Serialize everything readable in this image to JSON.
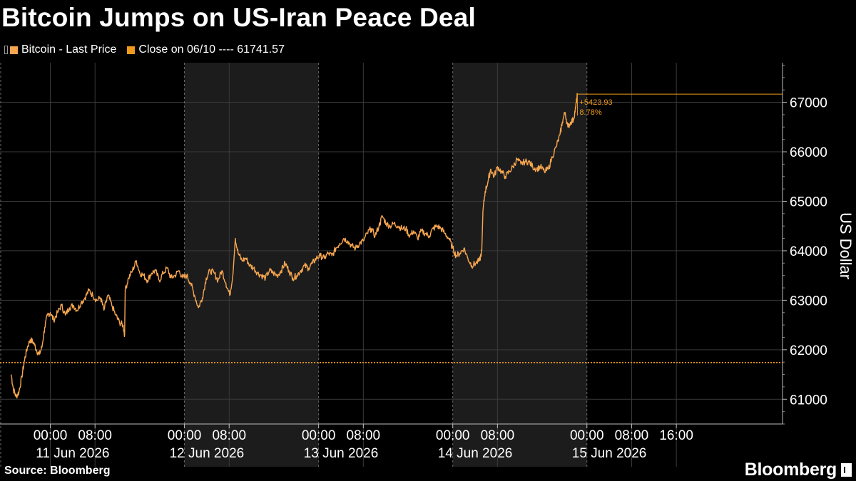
{
  "title": "Bitcoin Jumps on US-Iran Peace Deal",
  "legend": {
    "items": [
      {
        "label": "Bitcoin - Last Price",
        "color": "#f7a650"
      },
      {
        "label": "Close on 06/10 ---- 61741.57",
        "color": "#f09a1c"
      }
    ]
  },
  "source": "Source: Bloomberg",
  "logo": "Bloomberg",
  "colors": {
    "line": "#f7a650",
    "close": "#f09a1c",
    "shade": "#1c1c1c",
    "grid": "#3a3a3a"
  },
  "chart_data": {
    "type": "line",
    "ylabel": "US Dollar",
    "ylim": [
      60500,
      67800
    ],
    "yticks": [
      61000,
      62000,
      63000,
      64000,
      65000,
      66000,
      67000
    ],
    "x_unit": "hours since 00:00 11 Jun 2026",
    "xlim": [
      -9,
      131
    ],
    "shaded_days": [
      [
        24,
        48
      ],
      [
        72,
        96
      ]
    ],
    "day_boundaries": [
      24,
      48,
      72,
      96
    ],
    "xticks": [
      {
        "x": 0,
        "time": "00:00",
        "day": "11 Jun 2026"
      },
      {
        "x": 8,
        "time": "08:00",
        "day": ""
      },
      {
        "x": 24,
        "time": "00:00",
        "day": "12 Jun 2026"
      },
      {
        "x": 32,
        "time": "08:00",
        "day": ""
      },
      {
        "x": 48,
        "time": "00:00",
        "day": "13 Jun 2026"
      },
      {
        "x": 56,
        "time": "08:00",
        "day": ""
      },
      {
        "x": 72,
        "time": "00:00",
        "day": "14 Jun 2026"
      },
      {
        "x": 80,
        "time": "08:00",
        "day": ""
      },
      {
        "x": 96,
        "time": "00:00",
        "day": "15 Jun 2026"
      },
      {
        "x": 104,
        "time": "08:00",
        "day": ""
      },
      {
        "x": 112,
        "time": "16:00",
        "day": ""
      }
    ],
    "reference_line": {
      "label": "Close on 06/10",
      "value": 61741.57
    },
    "annotation": {
      "change": "+5423.93",
      "percent": "8.78%",
      "last": 67165.5
    },
    "series": [
      {
        "name": "Bitcoin - Last Price",
        "points": [
          [
            -7.0,
            61500
          ],
          [
            -6.6,
            61200
          ],
          [
            -6.1,
            61050
          ],
          [
            -5.6,
            61150
          ],
          [
            -5.1,
            61450
          ],
          [
            -4.6,
            61800
          ],
          [
            -4.1,
            62050
          ],
          [
            -3.6,
            62200
          ],
          [
            -3.0,
            62150
          ],
          [
            -2.5,
            62000
          ],
          [
            -2.0,
            61900
          ],
          [
            -1.5,
            62050
          ],
          [
            -1.0,
            62450
          ],
          [
            -0.5,
            62700
          ],
          [
            0.0,
            62750
          ],
          [
            0.6,
            62600
          ],
          [
            1.3,
            62750
          ],
          [
            2.0,
            62900
          ],
          [
            2.7,
            62700
          ],
          [
            3.4,
            62850
          ],
          [
            4.1,
            62900
          ],
          [
            4.8,
            62800
          ],
          [
            5.5,
            62950
          ],
          [
            6.2,
            63050
          ],
          [
            6.9,
            63200
          ],
          [
            7.6,
            63100
          ],
          [
            8.3,
            63000
          ],
          [
            9.0,
            63050
          ],
          [
            9.6,
            62800
          ],
          [
            10.3,
            63100
          ],
          [
            11.0,
            62900
          ],
          [
            11.7,
            62700
          ],
          [
            12.4,
            62550
          ],
          [
            13.0,
            62500
          ],
          [
            13.3,
            62300
          ],
          [
            13.4,
            63200
          ],
          [
            14.0,
            63450
          ],
          [
            14.7,
            63600
          ],
          [
            15.4,
            63800
          ],
          [
            16.0,
            63550
          ],
          [
            16.7,
            63500
          ],
          [
            17.4,
            63400
          ],
          [
            18.1,
            63550
          ],
          [
            18.8,
            63600
          ],
          [
            19.5,
            63400
          ],
          [
            20.2,
            63550
          ],
          [
            20.9,
            63650
          ],
          [
            21.6,
            63450
          ],
          [
            22.3,
            63500
          ],
          [
            23.0,
            63600
          ],
          [
            23.7,
            63450
          ],
          [
            24.4,
            63500
          ],
          [
            25.1,
            63350
          ],
          [
            25.8,
            63100
          ],
          [
            26.5,
            62850
          ],
          [
            27.2,
            63050
          ],
          [
            27.9,
            63450
          ],
          [
            28.6,
            63600
          ],
          [
            29.3,
            63550
          ],
          [
            30.0,
            63400
          ],
          [
            30.7,
            63600
          ],
          [
            31.4,
            63350
          ],
          [
            32.1,
            63100
          ],
          [
            32.7,
            63550
          ],
          [
            33.1,
            64250
          ],
          [
            33.6,
            63950
          ],
          [
            34.3,
            63800
          ],
          [
            35.0,
            63850
          ],
          [
            35.7,
            63700
          ],
          [
            36.4,
            63650
          ],
          [
            37.1,
            63550
          ],
          [
            37.8,
            63500
          ],
          [
            38.5,
            63450
          ],
          [
            39.2,
            63600
          ],
          [
            39.9,
            63550
          ],
          [
            40.6,
            63500
          ],
          [
            41.3,
            63600
          ],
          [
            42.0,
            63750
          ],
          [
            42.7,
            63600
          ],
          [
            43.4,
            63450
          ],
          [
            44.1,
            63500
          ],
          [
            44.8,
            63600
          ],
          [
            45.5,
            63700
          ],
          [
            46.2,
            63650
          ],
          [
            46.9,
            63750
          ],
          [
            47.6,
            63850
          ],
          [
            48.3,
            63900
          ],
          [
            49.0,
            63850
          ],
          [
            49.7,
            63950
          ],
          [
            50.4,
            63900
          ],
          [
            51.1,
            64050
          ],
          [
            51.8,
            64150
          ],
          [
            52.5,
            64250
          ],
          [
            53.2,
            64200
          ],
          [
            53.9,
            64100
          ],
          [
            54.6,
            64050
          ],
          [
            55.3,
            64150
          ],
          [
            56.0,
            64200
          ],
          [
            56.7,
            64350
          ],
          [
            57.4,
            64450
          ],
          [
            58.1,
            64300
          ],
          [
            58.8,
            64500
          ],
          [
            59.4,
            64700
          ],
          [
            60.1,
            64550
          ],
          [
            60.8,
            64500
          ],
          [
            61.5,
            64550
          ],
          [
            62.2,
            64500
          ],
          [
            62.9,
            64450
          ],
          [
            63.6,
            64450
          ],
          [
            64.3,
            64300
          ],
          [
            65.0,
            64400
          ],
          [
            65.7,
            64250
          ],
          [
            66.4,
            64400
          ],
          [
            67.1,
            64350
          ],
          [
            67.8,
            64300
          ],
          [
            68.5,
            64450
          ],
          [
            69.2,
            64500
          ],
          [
            69.9,
            64450
          ],
          [
            70.6,
            64350
          ],
          [
            71.3,
            64250
          ],
          [
            72.0,
            64050
          ],
          [
            72.6,
            63900
          ],
          [
            73.3,
            63950
          ],
          [
            74.0,
            64050
          ],
          [
            74.7,
            63850
          ],
          [
            75.4,
            63700
          ],
          [
            76.1,
            63750
          ],
          [
            76.8,
            63800
          ],
          [
            77.2,
            64000
          ],
          [
            77.4,
            64800
          ],
          [
            77.8,
            65200
          ],
          [
            78.3,
            65400
          ],
          [
            78.8,
            65650
          ],
          [
            79.4,
            65500
          ],
          [
            80.0,
            65700
          ],
          [
            80.7,
            65600
          ],
          [
            81.4,
            65500
          ],
          [
            82.1,
            65600
          ],
          [
            82.8,
            65700
          ],
          [
            83.5,
            65850
          ],
          [
            84.2,
            65750
          ],
          [
            84.9,
            65800
          ],
          [
            85.6,
            65800
          ],
          [
            86.3,
            65700
          ],
          [
            87.0,
            65650
          ],
          [
            87.7,
            65700
          ],
          [
            88.4,
            65600
          ],
          [
            89.1,
            65650
          ],
          [
            89.8,
            65900
          ],
          [
            90.5,
            66100
          ],
          [
            91.2,
            66350
          ],
          [
            91.6,
            66600
          ],
          [
            92.1,
            66800
          ],
          [
            92.6,
            66500
          ],
          [
            93.1,
            66600
          ],
          [
            93.6,
            66650
          ],
          [
            94.0,
            66900
          ],
          [
            94.3,
            67165
          ]
        ]
      }
    ]
  }
}
